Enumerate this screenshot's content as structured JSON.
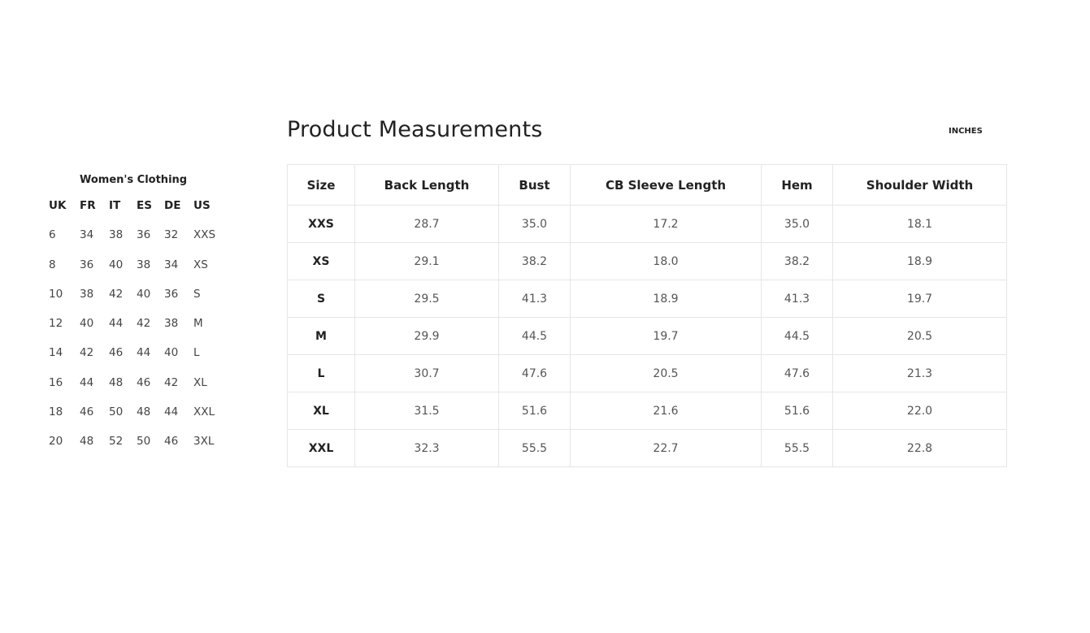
{
  "conversion": {
    "title": "Women's Clothing",
    "headers": [
      "UK",
      "FR",
      "IT",
      "ES",
      "DE",
      "US"
    ],
    "rows": [
      [
        "6",
        "34",
        "38",
        "36",
        "32",
        "XXS"
      ],
      [
        "8",
        "36",
        "40",
        "38",
        "34",
        "XS"
      ],
      [
        "10",
        "38",
        "42",
        "40",
        "36",
        "S"
      ],
      [
        "12",
        "40",
        "44",
        "42",
        "38",
        "M"
      ],
      [
        "14",
        "42",
        "46",
        "44",
        "40",
        "L"
      ],
      [
        "16",
        "44",
        "48",
        "46",
        "42",
        "XL"
      ],
      [
        "18",
        "46",
        "50",
        "48",
        "44",
        "XXL"
      ],
      [
        "20",
        "48",
        "52",
        "50",
        "46",
        "3XL"
      ]
    ]
  },
  "measurements": {
    "title": "Product Measurements",
    "units_label": "INCHES",
    "headers": [
      "Size",
      "Back Length",
      "Bust",
      "CB Sleeve Length",
      "Hem",
      "Shoulder Width"
    ],
    "rows": [
      [
        "XXS",
        "28.7",
        "35.0",
        "17.2",
        "35.0",
        "18.1"
      ],
      [
        "XS",
        "29.1",
        "38.2",
        "18.0",
        "38.2",
        "18.9"
      ],
      [
        "S",
        "29.5",
        "41.3",
        "18.9",
        "41.3",
        "19.7"
      ],
      [
        "M",
        "29.9",
        "44.5",
        "19.7",
        "44.5",
        "20.5"
      ],
      [
        "L",
        "30.7",
        "47.6",
        "20.5",
        "47.6",
        "21.3"
      ],
      [
        "XL",
        "31.5",
        "51.6",
        "21.6",
        "51.6",
        "22.0"
      ],
      [
        "XXL",
        "32.3",
        "55.5",
        "22.7",
        "55.5",
        "22.8"
      ]
    ]
  }
}
